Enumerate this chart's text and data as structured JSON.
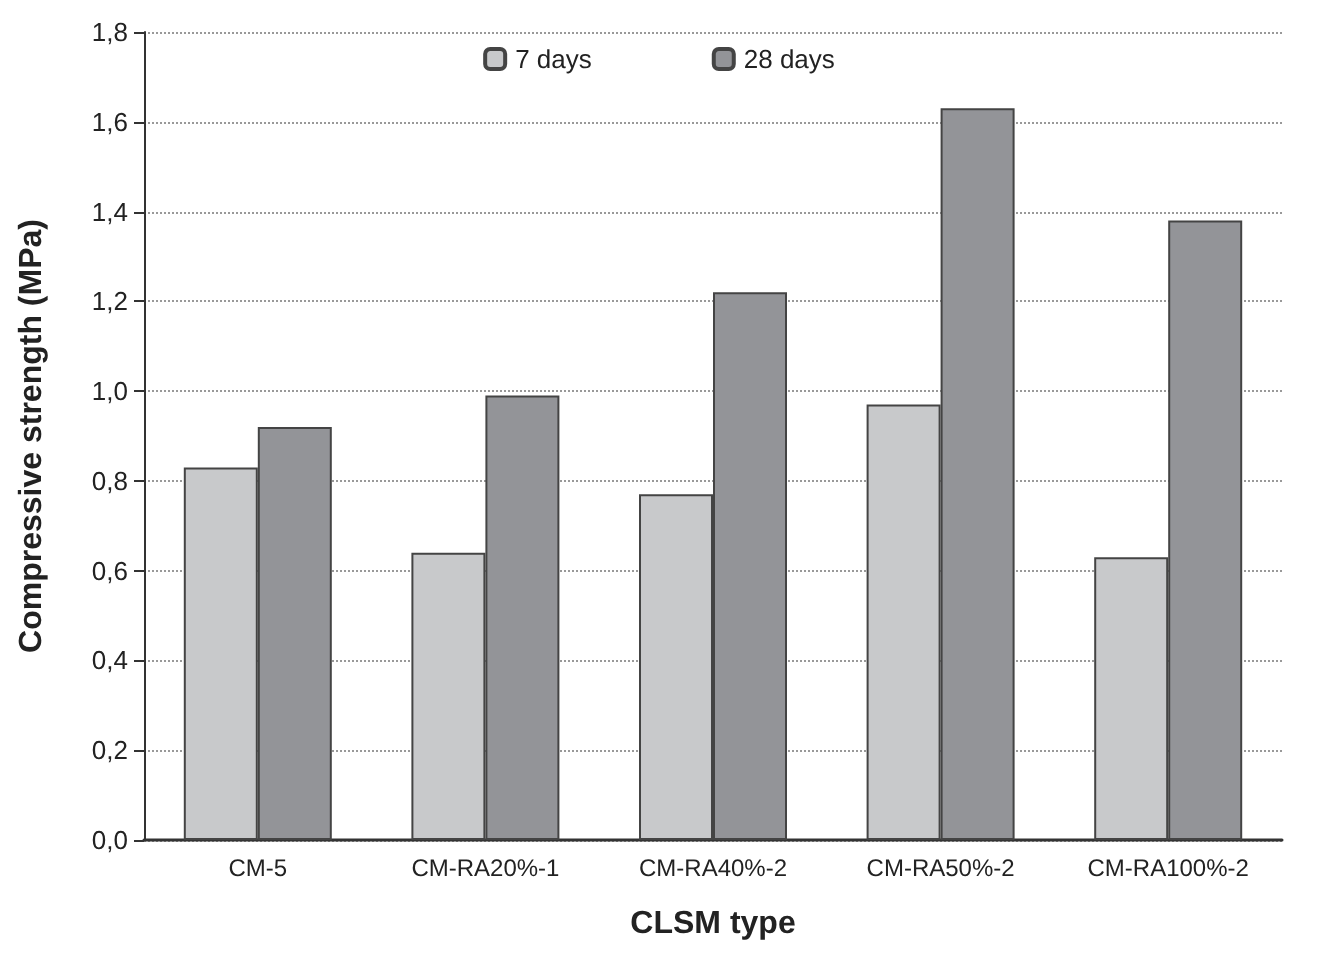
{
  "chart_data": {
    "type": "bar",
    "xlabel": "CLSM type",
    "ylabel": "Compressive strength (MPa)",
    "categories": [
      "CM-5",
      "CM-RA20%-1",
      "CM-RA40%-2",
      "CM-RA50%-2",
      "CM-RA100%-2"
    ],
    "series": [
      {
        "name": "7 days",
        "color": "#c8c9cb",
        "values": [
          0.83,
          0.64,
          0.77,
          0.97,
          0.63
        ]
      },
      {
        "name": "28 days",
        "color": "#939498",
        "values": [
          0.92,
          0.99,
          1.22,
          1.63,
          1.38
        ]
      }
    ],
    "ylim": [
      0,
      1.8
    ],
    "yticks": [
      {
        "value": 0,
        "label": "0,0"
      },
      {
        "value": 0.2,
        "label": "0,2"
      },
      {
        "value": 0.4,
        "label": "0,4"
      },
      {
        "value": 0.6,
        "label": "0,6"
      },
      {
        "value": 0.8,
        "label": "0,8"
      },
      {
        "value": 1.0,
        "label": "1,0"
      },
      {
        "value": 1.2,
        "label": "1,2"
      },
      {
        "value": 1.4,
        "label": "1,4"
      },
      {
        "value": 1.6,
        "label": "1,6"
      },
      {
        "value": 1.8,
        "label": "1,8"
      }
    ],
    "grid": "y",
    "legend": "top"
  }
}
